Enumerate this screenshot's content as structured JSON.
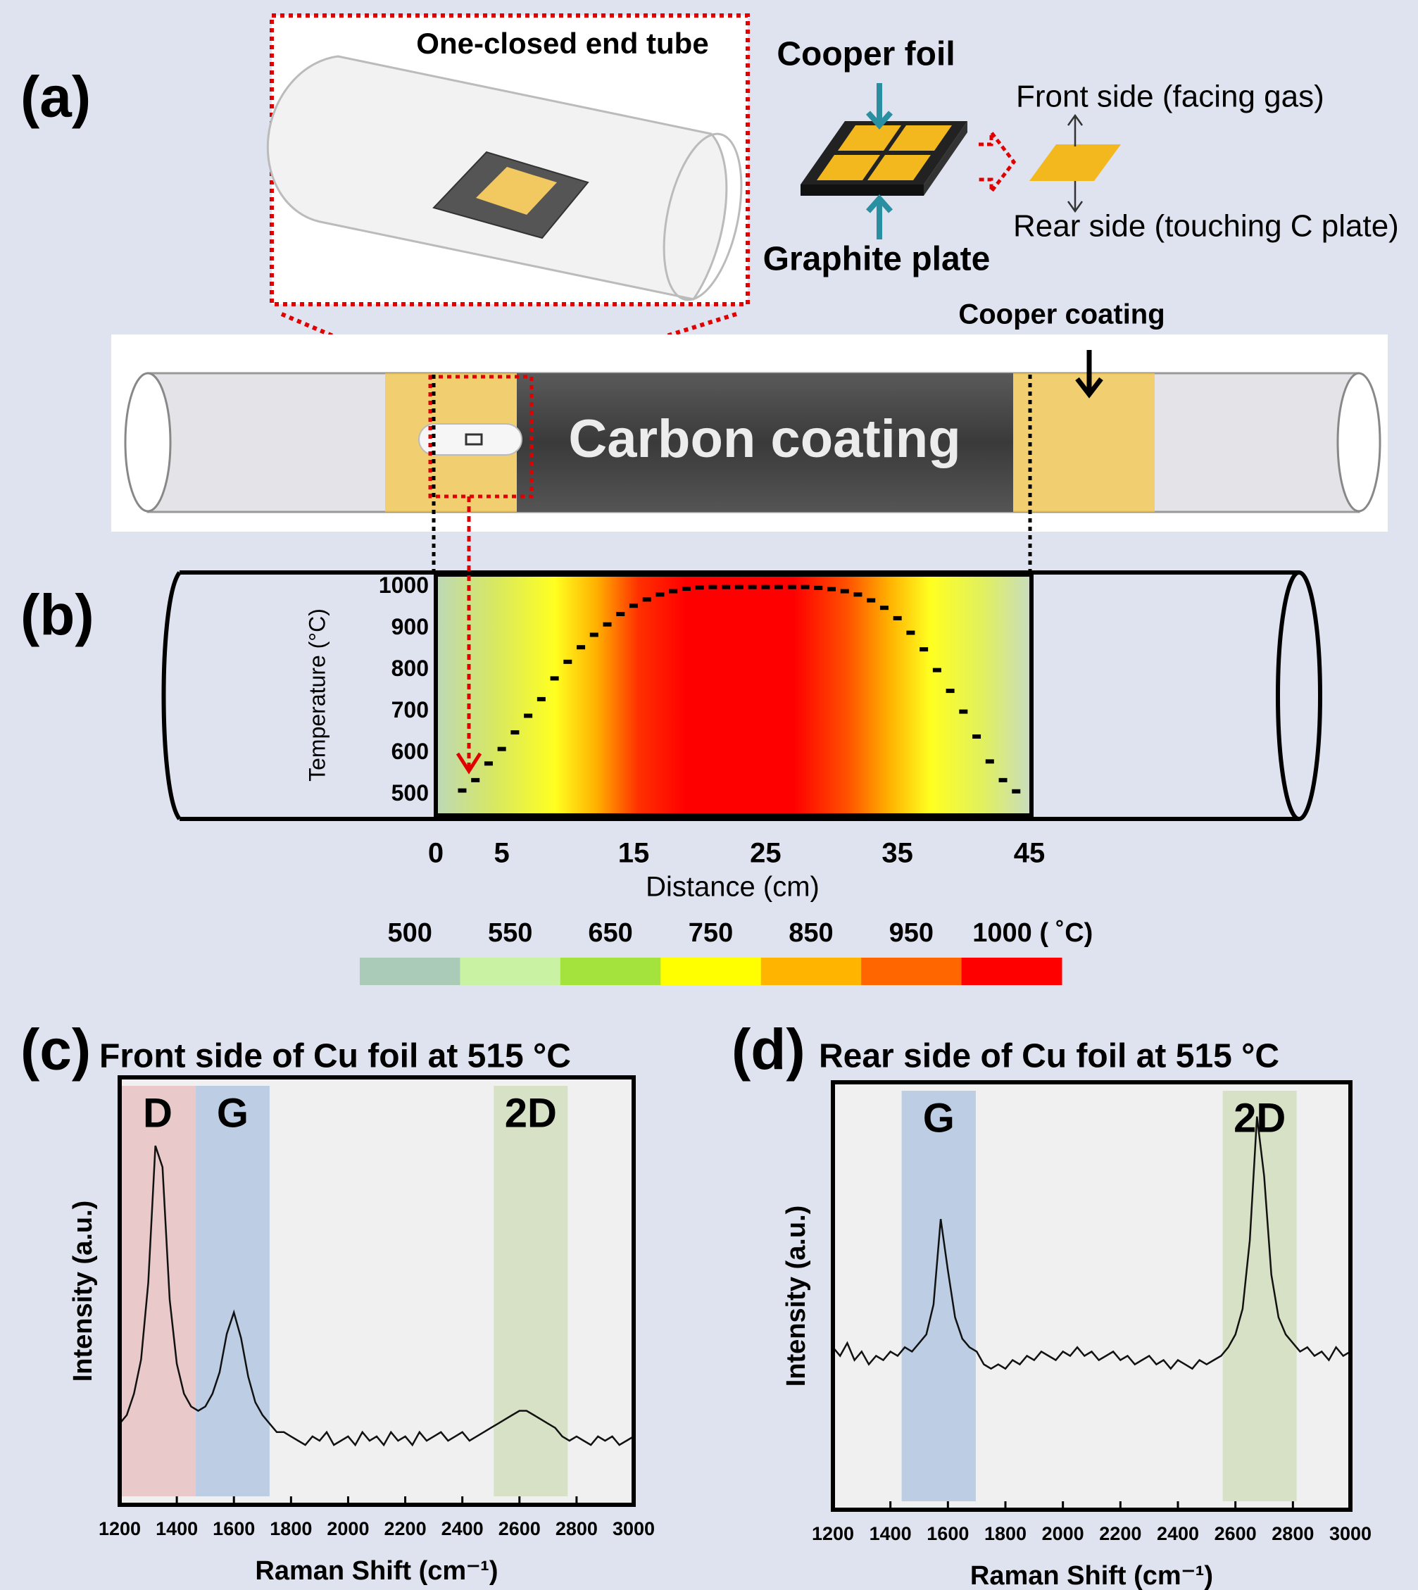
{
  "diagram": {
    "panel_label": "(a)",
    "inset_title": "One-closed end tube",
    "cooper_foil": "Cooper foil",
    "graphite_plate": "Graphite plate",
    "front_side": "Front side (facing gas)",
    "rear_side": "Rear side (touching C plate)",
    "cooper_coating": "Cooper coating",
    "carbon_coating": "Carbon coating"
  },
  "chart_data": [
    {
      "type": "scatter",
      "panel_label": "(b)",
      "x_label": "Distance (cm)",
      "y_label": "Temperature (°C)",
      "color": "#000000",
      "x": [
        2,
        3,
        4,
        5,
        6,
        7,
        8,
        9,
        10,
        11,
        12,
        13,
        14,
        15,
        16,
        17,
        18,
        19,
        20,
        21,
        22,
        23,
        24,
        25,
        26,
        27,
        28,
        29,
        30,
        31,
        32,
        33,
        34,
        35,
        36,
        37,
        38,
        39,
        40,
        41,
        42,
        43,
        44
      ],
      "values": [
        510,
        535,
        575,
        610,
        650,
        690,
        730,
        780,
        820,
        855,
        885,
        910,
        935,
        955,
        970,
        982,
        990,
        996,
        999,
        1000,
        1000,
        1000,
        1000,
        1000,
        1000,
        1000,
        1000,
        998,
        995,
        990,
        982,
        968,
        950,
        925,
        890,
        850,
        800,
        750,
        700,
        640,
        580,
        535,
        508
      ],
      "xlim": [
        0,
        45
      ],
      "xticks": [
        0,
        5,
        15,
        25,
        35,
        45
      ],
      "ylim": [
        450,
        1030
      ],
      "yticks": [
        500,
        600,
        700,
        800,
        900,
        1000
      ],
      "colorbar": {
        "ticks": [
          500,
          550,
          650,
          750,
          850,
          950,
          {
            "value": 1000,
            "label": "1000 ( ˚C)"
          }
        ],
        "colors": [
          "#a9cbb8",
          "#c9f2a2",
          "#a4e23e",
          "#ffff00",
          "#ffb400",
          "#ff6600",
          "#ff0000"
        ]
      }
    },
    {
      "type": "line",
      "panel_label": "(c)",
      "title": "Front side of Cu foil at 515 °C",
      "x_label": "Raman Shift (cm⁻¹)",
      "y_label": "Intensity (a.u.)",
      "color": "#111111",
      "bands": [
        {
          "label": "D",
          "range": [
            1200,
            1466
          ],
          "color": "#e8c4c4"
        },
        {
          "label": "G",
          "range": [
            1466,
            1725
          ],
          "color": "#b6c9e2"
        },
        {
          "label": "2D",
          "range": [
            2510,
            2769
          ],
          "color": "#d4dfc0"
        }
      ],
      "x": [
        1200,
        1225,
        1250,
        1275,
        1300,
        1325,
        1350,
        1375,
        1400,
        1425,
        1450,
        1475,
        1500,
        1525,
        1550,
        1575,
        1600,
        1625,
        1650,
        1675,
        1700,
        1725,
        1750,
        1775,
        1800,
        1825,
        1850,
        1875,
        1900,
        1925,
        1950,
        1975,
        2000,
        2025,
        2050,
        2075,
        2100,
        2125,
        2150,
        2175,
        2200,
        2225,
        2250,
        2275,
        2300,
        2325,
        2350,
        2375,
        2400,
        2425,
        2450,
        2475,
        2500,
        2525,
        2550,
        2575,
        2600,
        2625,
        2650,
        2675,
        2700,
        2725,
        2750,
        2775,
        2800,
        2825,
        2850,
        2875,
        2900,
        2925,
        2950,
        2975,
        3000
      ],
      "values": [
        19,
        21,
        26,
        34,
        52,
        84,
        79,
        48,
        33,
        26,
        23,
        22,
        23,
        26,
        31,
        40,
        45,
        39,
        30,
        24,
        21,
        19,
        17,
        17,
        16,
        15,
        14,
        16,
        15,
        17,
        14,
        15,
        16,
        14,
        17,
        15,
        16,
        14,
        17,
        15,
        16,
        14,
        17,
        15,
        16,
        17,
        15,
        16,
        17,
        15,
        16,
        17,
        18,
        19,
        20,
        21,
        22,
        22,
        21,
        20,
        19,
        18,
        16,
        15,
        16,
        15,
        14,
        16,
        15,
        16,
        14,
        15,
        16
      ],
      "xlim": [
        1200,
        3000
      ],
      "xticks": [
        1200,
        1400,
        1600,
        1800,
        2000,
        2200,
        2400,
        2600,
        2800,
        3000
      ],
      "ylim": [
        0,
        100
      ]
    },
    {
      "type": "line",
      "panel_label": "(d)",
      "title": "Rear side of Cu foil at 515 °C",
      "x_label": "Raman Shift (cm⁻¹)",
      "y_label": "Intensity (a.u.)",
      "color": "#111111",
      "bands": [
        {
          "label": "G",
          "range": [
            1439,
            1697
          ],
          "color": "#b6c9e2"
        },
        {
          "label": "2D",
          "range": [
            2556,
            2813
          ],
          "color": "#d4dfc0"
        }
      ],
      "x": [
        1200,
        1225,
        1250,
        1275,
        1300,
        1325,
        1350,
        1375,
        1400,
        1425,
        1450,
        1475,
        1500,
        1525,
        1550,
        1575,
        1600,
        1625,
        1650,
        1675,
        1700,
        1725,
        1750,
        1775,
        1800,
        1825,
        1850,
        1875,
        1900,
        1925,
        1950,
        1975,
        2000,
        2025,
        2050,
        2075,
        2100,
        2125,
        2150,
        2175,
        2200,
        2225,
        2250,
        2275,
        2300,
        2325,
        2350,
        2375,
        2400,
        2425,
        2450,
        2475,
        2500,
        2525,
        2550,
        2575,
        2600,
        2625,
        2650,
        2675,
        2700,
        2725,
        2750,
        2775,
        2800,
        2825,
        2850,
        2875,
        2900,
        2925,
        2950,
        2975,
        3000
      ],
      "values": [
        38,
        36,
        39,
        35,
        37,
        34,
        36,
        35,
        37,
        36,
        38,
        37,
        39,
        41,
        48,
        68,
        56,
        45,
        40,
        38,
        37,
        34,
        33,
        34,
        33,
        35,
        34,
        36,
        35,
        37,
        36,
        35,
        37,
        36,
        38,
        36,
        37,
        35,
        36,
        37,
        35,
        36,
        34,
        35,
        36,
        34,
        35,
        33,
        35,
        34,
        33,
        35,
        34,
        35,
        36,
        38,
        41,
        47,
        63,
        92,
        78,
        55,
        45,
        41,
        39,
        37,
        38,
        36,
        37,
        35,
        38,
        36,
        37
      ],
      "xlim": [
        1200,
        3000
      ],
      "xticks": [
        1200,
        1400,
        1600,
        1800,
        2000,
        2200,
        2400,
        2600,
        2800,
        3000
      ],
      "ylim": [
        0,
        100
      ]
    }
  ]
}
